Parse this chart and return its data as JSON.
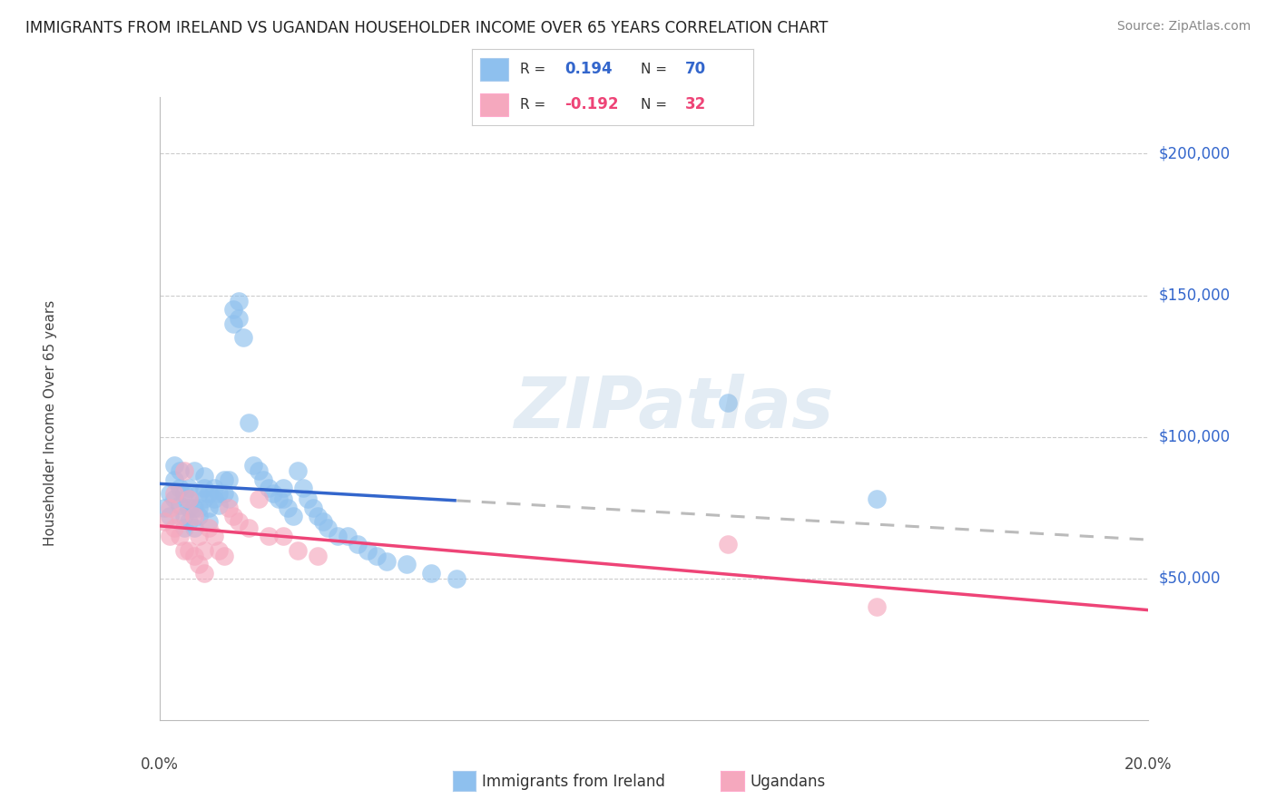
{
  "title": "IMMIGRANTS FROM IRELAND VS UGANDAN HOUSEHOLDER INCOME OVER 65 YEARS CORRELATION CHART",
  "source": "Source: ZipAtlas.com",
  "ylabel": "Householder Income Over 65 years",
  "xlim": [
    0.0,
    0.2
  ],
  "ylim": [
    0,
    220000
  ],
  "yticks": [
    0,
    50000,
    100000,
    150000,
    200000
  ],
  "ytick_labels": [
    "",
    "$50,000",
    "$100,000",
    "$150,000",
    "$200,000"
  ],
  "R_ireland": 0.194,
  "N_ireland": 70,
  "R_ugandan": -0.192,
  "N_ugandan": 32,
  "color_ireland": "#8EC0EE",
  "color_ugandan": "#F5A8BE",
  "line_color_ireland": "#3366CC",
  "line_color_ugandan": "#EE4477",
  "line_color_extrapolate": "#BBBBBB",
  "watermark": "ZIPatlas",
  "background_color": "#FFFFFF",
  "grid_color": "#CCCCCC",
  "ireland_x": [
    0.001,
    0.002,
    0.002,
    0.003,
    0.003,
    0.003,
    0.004,
    0.004,
    0.004,
    0.005,
    0.005,
    0.005,
    0.006,
    0.006,
    0.006,
    0.006,
    0.007,
    0.007,
    0.007,
    0.008,
    0.008,
    0.008,
    0.009,
    0.009,
    0.009,
    0.01,
    0.01,
    0.01,
    0.011,
    0.011,
    0.012,
    0.012,
    0.013,
    0.013,
    0.014,
    0.014,
    0.015,
    0.015,
    0.016,
    0.016,
    0.017,
    0.018,
    0.019,
    0.02,
    0.021,
    0.022,
    0.023,
    0.024,
    0.025,
    0.025,
    0.026,
    0.027,
    0.028,
    0.029,
    0.03,
    0.031,
    0.032,
    0.033,
    0.034,
    0.036,
    0.038,
    0.04,
    0.042,
    0.044,
    0.046,
    0.05,
    0.055,
    0.06,
    0.115,
    0.145
  ],
  "ireland_y": [
    75000,
    80000,
    72000,
    85000,
    78000,
    90000,
    82000,
    76000,
    88000,
    80000,
    72000,
    68000,
    82000,
    78000,
    75000,
    70000,
    88000,
    75000,
    68000,
    80000,
    75000,
    72000,
    86000,
    82000,
    78000,
    80000,
    75000,
    70000,
    82000,
    78000,
    80000,
    76000,
    85000,
    80000,
    85000,
    78000,
    145000,
    140000,
    148000,
    142000,
    135000,
    105000,
    90000,
    88000,
    85000,
    82000,
    80000,
    78000,
    82000,
    78000,
    75000,
    72000,
    88000,
    82000,
    78000,
    75000,
    72000,
    70000,
    68000,
    65000,
    65000,
    62000,
    60000,
    58000,
    56000,
    55000,
    52000,
    50000,
    112000,
    78000
  ],
  "ugandan_x": [
    0.001,
    0.002,
    0.002,
    0.003,
    0.003,
    0.004,
    0.004,
    0.005,
    0.005,
    0.006,
    0.006,
    0.007,
    0.007,
    0.008,
    0.008,
    0.009,
    0.009,
    0.01,
    0.011,
    0.012,
    0.013,
    0.014,
    0.015,
    0.016,
    0.018,
    0.02,
    0.022,
    0.025,
    0.028,
    0.032,
    0.115,
    0.145
  ],
  "ugandan_y": [
    70000,
    75000,
    65000,
    80000,
    68000,
    72000,
    65000,
    88000,
    60000,
    78000,
    60000,
    72000,
    58000,
    65000,
    55000,
    60000,
    52000,
    68000,
    65000,
    60000,
    58000,
    75000,
    72000,
    70000,
    68000,
    78000,
    65000,
    65000,
    60000,
    58000,
    62000,
    40000
  ]
}
